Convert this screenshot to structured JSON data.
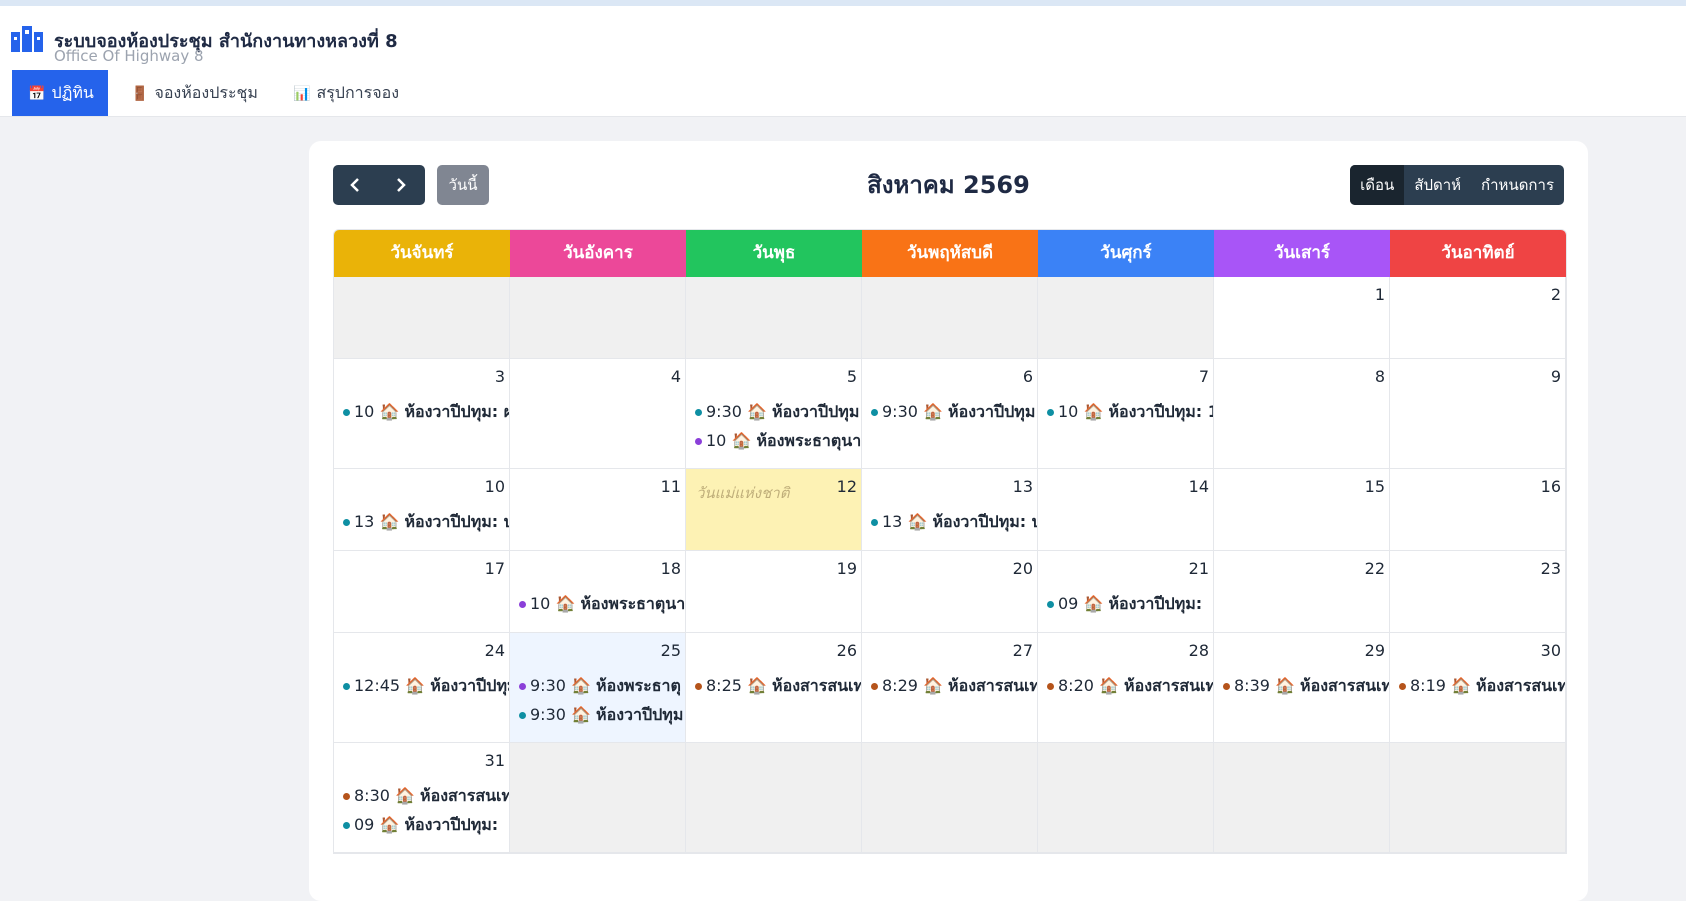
{
  "header": {
    "title": "ระบบจองห้องประชุม สำนักงานทางหลวงที่ 8",
    "subtitle": "Office Of Highway 8"
  },
  "nav": [
    {
      "label": "ปฏิทิน",
      "active": true
    },
    {
      "label": "จองห้องประชุม",
      "active": false
    },
    {
      "label": "สรุปการจอง",
      "active": false
    }
  ],
  "calendar": {
    "today_button": "วันนี้",
    "title": "สิงหาคม 2569",
    "views": [
      {
        "label": "เดือน",
        "active": true
      },
      {
        "label": "สัปดาห์",
        "active": false
      },
      {
        "label": "กำหนดการ",
        "active": false
      }
    ],
    "weekdays": [
      {
        "label": "วันจันทร์",
        "color": "#eab308"
      },
      {
        "label": "วันอังคาร",
        "color": "#ec4899"
      },
      {
        "label": "วันพุธ",
        "color": "#22c55e"
      },
      {
        "label": "วันพฤหัสบดี",
        "color": "#f97316"
      },
      {
        "label": "วันศุกร์",
        "color": "#3b82f6"
      },
      {
        "label": "วันเสาร์",
        "color": "#a855f7"
      },
      {
        "label": "วันอาทิตย์",
        "color": "#ef4444"
      }
    ],
    "weeks": [
      [
        null,
        null,
        null,
        null,
        null,
        {
          "day": 1,
          "events": []
        },
        {
          "day": 2,
          "events": []
        }
      ],
      [
        {
          "day": 3,
          "events": [
            {
              "time": "10",
              "room": "ห้องวาปีปทุม: ผ",
              "color": "#0e8fa3"
            }
          ]
        },
        {
          "day": 4,
          "events": []
        },
        {
          "day": 5,
          "events": [
            {
              "time": "9:30",
              "room": "ห้องวาปีปทุม",
              "color": "#0e8fa3"
            },
            {
              "time": "10",
              "room": "ห้องพระธาตุนา",
              "color": "#8b3fd9"
            }
          ]
        },
        {
          "day": 6,
          "events": [
            {
              "time": "9:30",
              "room": "ห้องวาปีปทุม",
              "color": "#0e8fa3"
            }
          ]
        },
        {
          "day": 7,
          "events": [
            {
              "time": "10",
              "room": "ห้องวาปีปทุม: 1",
              "color": "#0e8fa3"
            }
          ]
        },
        {
          "day": 8,
          "events": []
        },
        {
          "day": 9,
          "events": []
        }
      ],
      [
        {
          "day": 10,
          "events": [
            {
              "time": "13",
              "room": "ห้องวาปีปทุม: บ",
              "color": "#0e8fa3"
            }
          ]
        },
        {
          "day": 11,
          "events": []
        },
        {
          "day": 12,
          "events": [],
          "holiday": "วันแม่แห่งชาติ"
        },
        {
          "day": 13,
          "events": [
            {
              "time": "13",
              "room": "ห้องวาปีปทุม: บ",
              "color": "#0e8fa3"
            }
          ]
        },
        {
          "day": 14,
          "events": []
        },
        {
          "day": 15,
          "events": []
        },
        {
          "day": 16,
          "events": []
        }
      ],
      [
        {
          "day": 17,
          "events": []
        },
        {
          "day": 18,
          "events": [
            {
              "time": "10",
              "room": "ห้องพระธาตุนา",
              "color": "#8b3fd9"
            }
          ]
        },
        {
          "day": 19,
          "events": []
        },
        {
          "day": 20,
          "events": []
        },
        {
          "day": 21,
          "events": [
            {
              "time": "09",
              "room": "ห้องวาปีปทุม:",
              "color": "#0e8fa3"
            }
          ]
        },
        {
          "day": 22,
          "events": []
        },
        {
          "day": 23,
          "events": []
        }
      ],
      [
        {
          "day": 24,
          "events": [
            {
              "time": "12:45",
              "room": "ห้องวาปีปทุม",
              "color": "#0e8fa3"
            }
          ]
        },
        {
          "day": 25,
          "today": true,
          "events": [
            {
              "time": "9:30",
              "room": "ห้องพระธาตุ",
              "color": "#8b3fd9"
            },
            {
              "time": "9:30",
              "room": "ห้องวาปีปทุม",
              "color": "#0e8fa3"
            }
          ]
        },
        {
          "day": 26,
          "events": [
            {
              "time": "8:25",
              "room": "ห้องสารสนเทศ",
              "color": "#b5541b"
            }
          ]
        },
        {
          "day": 27,
          "events": [
            {
              "time": "8:29",
              "room": "ห้องสารสนเทศ",
              "color": "#b5541b"
            }
          ]
        },
        {
          "day": 28,
          "events": [
            {
              "time": "8:20",
              "room": "ห้องสารสนเทศ",
              "color": "#b5541b"
            }
          ]
        },
        {
          "day": 29,
          "events": [
            {
              "time": "8:39",
              "room": "ห้องสารสนเทศ",
              "color": "#b5541b"
            }
          ]
        },
        {
          "day": 30,
          "events": [
            {
              "time": "8:19",
              "room": "ห้องสารสนเทศ",
              "color": "#b5541b"
            }
          ]
        }
      ],
      [
        {
          "day": 31,
          "events": [
            {
              "time": "8:30",
              "room": "ห้องสารสนเทศ",
              "color": "#b5541b"
            },
            {
              "time": "09",
              "room": "ห้องวาปีปทุม:",
              "color": "#0e8fa3"
            }
          ]
        },
        null,
        null,
        null,
        null,
        null,
        null
      ]
    ]
  }
}
